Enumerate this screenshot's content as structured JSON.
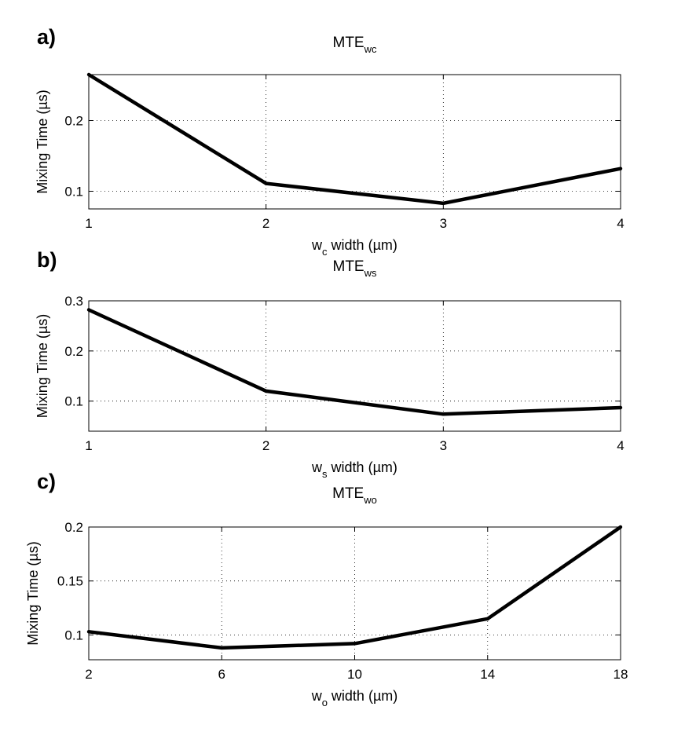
{
  "chart_data": [
    {
      "type": "line",
      "panel": "a)",
      "title": "MTE",
      "title_sub": "wc",
      "xlabel_prefix": "w",
      "xlabel_sub": "c",
      "xlabel_suffix": " width (µm)",
      "ylabel": "Mixing Time (µs)",
      "x": [
        1,
        2,
        3,
        4
      ],
      "values": [
        0.265,
        0.111,
        0.083,
        0.132
      ],
      "xlim": [
        1,
        4
      ],
      "ylim": [
        0.075,
        0.265
      ],
      "xticks": [
        1,
        2,
        3,
        4
      ],
      "xtick_labels": [
        "1",
        "2",
        "3",
        "4"
      ],
      "yticks": [
        0.1,
        0.2
      ],
      "ytick_labels": [
        "0.1",
        "0.2"
      ],
      "grid": true
    },
    {
      "type": "line",
      "panel": "b)",
      "title": "MTE",
      "title_sub": "ws",
      "xlabel_prefix": "w",
      "xlabel_sub": "s",
      "xlabel_suffix": " width (µm)",
      "ylabel": "Mixing Time (µs)",
      "x": [
        1,
        2,
        3,
        4
      ],
      "values": [
        0.282,
        0.12,
        0.074,
        0.087
      ],
      "xlim": [
        1,
        4
      ],
      "ylim": [
        0.04,
        0.3
      ],
      "xticks": [
        1,
        2,
        3,
        4
      ],
      "xtick_labels": [
        "1",
        "2",
        "3",
        "4"
      ],
      "yticks": [
        0.1,
        0.2,
        0.3
      ],
      "ytick_labels": [
        "0.1",
        "0.2",
        "0.3"
      ],
      "grid": true
    },
    {
      "type": "line",
      "panel": "c)",
      "title": "MTE",
      "title_sub": "wo",
      "xlabel_prefix": "w",
      "xlabel_sub": "o",
      "xlabel_suffix": " width (µm)",
      "ylabel": "Mixing Time (µs)",
      "x": [
        2,
        6,
        10,
        14,
        18
      ],
      "values": [
        0.103,
        0.088,
        0.092,
        0.115,
        0.2
      ],
      "xlim": [
        2,
        18
      ],
      "ylim": [
        0.077,
        0.2
      ],
      "xticks": [
        2,
        6,
        10,
        14,
        18
      ],
      "xtick_labels": [
        "2",
        "6",
        "10",
        "14",
        "18"
      ],
      "yticks": [
        0.1,
        0.15,
        0.2
      ],
      "ytick_labels": [
        "0.1",
        "0.15",
        "0.2"
      ],
      "grid": true
    }
  ]
}
